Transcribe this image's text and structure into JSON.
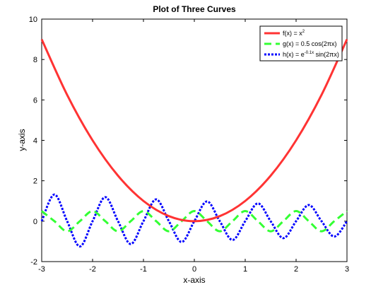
{
  "chart_data": {
    "type": "line",
    "title": "Plot of Three Curves",
    "xlabel": "x-axis",
    "ylabel": "y-axis",
    "xlim": [
      -3,
      3
    ],
    "ylim": [
      -2,
      10
    ],
    "xticks": [
      -3,
      -2,
      -1,
      0,
      1,
      2,
      3
    ],
    "yticks": [
      -2,
      0,
      2,
      4,
      6,
      8,
      10
    ],
    "grid": false,
    "legend_position": "top-right",
    "series": [
      {
        "name": "f(x) = x2",
        "legend_base": "f(x) = x",
        "legend_sup": "2",
        "color": "#ff3333",
        "style": "solid",
        "x": [
          -3,
          -2.5,
          -2,
          -1.5,
          -1,
          -0.5,
          0,
          0.5,
          1,
          1.5,
          2,
          2.5,
          3
        ],
        "values": [
          9,
          6.25,
          4,
          2.25,
          1,
          0.25,
          0,
          0.25,
          1,
          2.25,
          4,
          6.25,
          9
        ]
      },
      {
        "name": "g(x) = 0.5 cos(2πx)",
        "color": "#33ff33",
        "style": "dashed",
        "x": [
          -3,
          -2.75,
          -2.5,
          -2.25,
          -2,
          -1.75,
          -1.5,
          -1.25,
          -1,
          -0.75,
          -0.5,
          -0.25,
          0,
          0.25,
          0.5,
          0.75,
          1,
          1.25,
          1.5,
          1.75,
          2,
          2.25,
          2.5,
          2.75,
          3
        ],
        "values": [
          0.5,
          0,
          -0.5,
          0,
          0.5,
          0,
          -0.5,
          0,
          0.5,
          0,
          -0.5,
          0,
          0.5,
          0,
          -0.5,
          0,
          0.5,
          0,
          -0.5,
          0,
          0.5,
          0,
          -0.5,
          0,
          0.5
        ]
      },
      {
        "name": "h(x) = e-0.1x sin(2πx)",
        "legend_base": "h(x) = e",
        "legend_sup": "-0.1x",
        "legend_tail": " sin(2πx)",
        "color": "#0000ff",
        "style": "dotted",
        "x": [
          -3,
          -2.75,
          -2.5,
          -2.25,
          -2,
          -1.75,
          -1.5,
          -1.25,
          -1,
          -0.75,
          -0.5,
          -0.25,
          0,
          0.25,
          0.5,
          0.75,
          1,
          1.25,
          1.5,
          1.75,
          2,
          2.25,
          2.5,
          2.75,
          3
        ],
        "values": [
          0,
          1.32,
          0,
          -1.25,
          0,
          1.19,
          0,
          -1.13,
          0,
          1.08,
          0,
          -1.03,
          0,
          0.98,
          0,
          -0.93,
          0,
          0.88,
          0,
          -0.84,
          0,
          0.8,
          0,
          -0.76,
          0
        ]
      }
    ]
  }
}
